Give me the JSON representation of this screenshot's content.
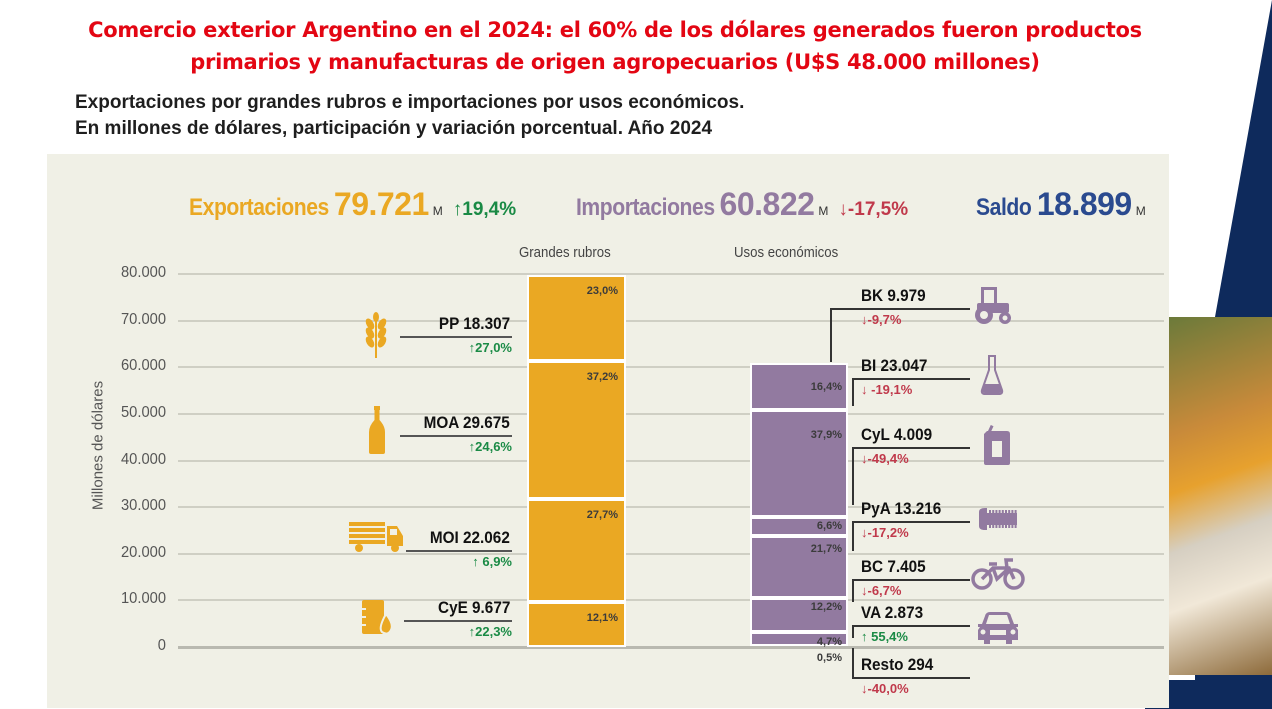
{
  "header": {
    "title_line1": "Comercio exterior Argentino en el 2024: el 60% de los dólares generados fueron productos",
    "title_line2": "primarios y manufacturas de origen agropecuarios (U$S 48.000 millones)",
    "subtitle_line1": "Exportaciones por grandes rubros e importaciones por usos económicos.",
    "subtitle_line2": "En millones de dólares, participación y variación porcentual. Año 2024"
  },
  "colors": {
    "title_red": "#e30613",
    "export_gold": "#eaa823",
    "import_purple": "#927aa0",
    "saldo_blue": "#2a4a8f",
    "up_green": "#1a8a45",
    "down_red": "#c0394b",
    "panel_bg": "#f0f0e6",
    "navy": "#0e2a5c"
  },
  "kpis": {
    "exports": {
      "label": "Exportaciones",
      "value": "79.721",
      "unit": "M",
      "change": "↑19,4%"
    },
    "imports": {
      "label": "Importaciones",
      "value": "60.822",
      "unit": "M",
      "change": "↓-17,5%"
    },
    "balance": {
      "label": "Saldo",
      "value": "18.899",
      "unit": "M"
    }
  },
  "chart_data": {
    "type": "bar",
    "subtype": "stacked",
    "title": "Exportaciones por grandes rubros e importaciones por usos económicos",
    "ylabel": "Millones de dólares",
    "ylim": [
      0,
      80000
    ],
    "yticks": [
      0,
      10000,
      20000,
      30000,
      40000,
      50000,
      60000,
      70000,
      80000
    ],
    "ytick_labels": [
      "0",
      "10.000",
      "20.000",
      "30.000",
      "40.000",
      "50.000",
      "60.000",
      "70.000",
      "80.000"
    ],
    "grid": true,
    "categories": [
      "Grandes rubros",
      "Usos económicos"
    ],
    "exports": {
      "header": "Grandes rubros",
      "total": 79721,
      "segments": [
        {
          "code": "CyE",
          "label": "CyE  9.677",
          "value": 9677,
          "share": "12,1%",
          "change": "↑22,3%",
          "dir": "up",
          "icon": "fuel-barrel-icon"
        },
        {
          "code": "MOI",
          "label": "MOI 22.062",
          "value": 22062,
          "share": "27,7%",
          "change": "↑ 6,9%",
          "dir": "up",
          "icon": "truck-icon"
        },
        {
          "code": "MOA",
          "label": "MOA  29.675",
          "value": 29675,
          "share": "37,2%",
          "change": "↑24,6%",
          "dir": "up",
          "icon": "bottle-icon"
        },
        {
          "code": "PP",
          "label": "PP  18.307",
          "value": 18307,
          "share": "23,0%",
          "change": "↑27,0%",
          "dir": "up",
          "icon": "wheat-icon"
        }
      ]
    },
    "imports": {
      "header": "Usos económicos",
      "total": 60822,
      "segments": [
        {
          "code": "Resto",
          "label": "Resto 294",
          "value": 294,
          "share": "0,5%",
          "change": "↓-40,0%",
          "dir": "down",
          "icon": ""
        },
        {
          "code": "VA",
          "label": "VA   2.873",
          "value": 2873,
          "share": "4,7%",
          "change": "↑ 55,4%",
          "dir": "up",
          "icon": "car-icon"
        },
        {
          "code": "BC",
          "label": "BC   7.405",
          "value": 7405,
          "share": "12,2%",
          "change": "↓-6,7%",
          "dir": "down",
          "icon": "bicycle-icon"
        },
        {
          "code": "PyA",
          "label": "PyA  13.216",
          "value": 13216,
          "share": "21,7%",
          "change": "↓-17,2%",
          "dir": "down",
          "icon": "screw-icon"
        },
        {
          "code": "CyL",
          "label": "CyL   4.009",
          "value": 4009,
          "share": "6,6%",
          "change": "↓-49,4%",
          "dir": "down",
          "icon": "jerrycan-icon"
        },
        {
          "code": "BI",
          "label": "BI   23.047",
          "value": 23047,
          "share": "37,9%",
          "change": "↓ -19,1%",
          "dir": "down",
          "icon": "flask-icon"
        },
        {
          "code": "BK",
          "label": "BK   9.979",
          "value": 9979,
          "share": "16,4%",
          "change": "↓-9,7%",
          "dir": "down",
          "icon": "tractor-icon"
        }
      ]
    }
  }
}
